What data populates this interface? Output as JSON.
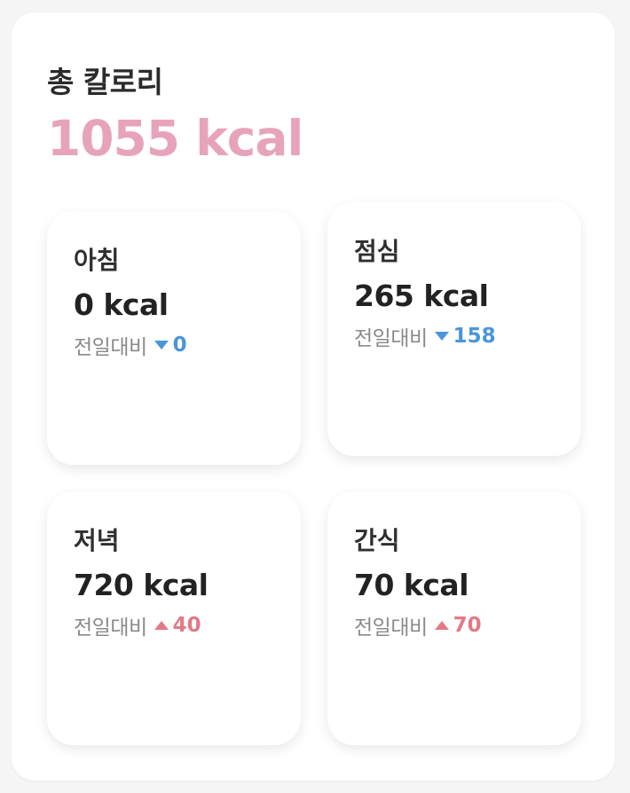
{
  "summary": {
    "title": "총 칼로리",
    "total": "1055 kcal",
    "accent_color": "#e8a3bc"
  },
  "meals": [
    {
      "name": "아침",
      "calories": "0 kcal",
      "compare_label": "전일대비",
      "direction": "down",
      "delta": "0"
    },
    {
      "name": "점심",
      "calories": "265 kcal",
      "compare_label": "전일대비",
      "direction": "down",
      "delta": "158"
    },
    {
      "name": "저녁",
      "calories": "720 kcal",
      "compare_label": "전일대비",
      "direction": "up",
      "delta": "40"
    },
    {
      "name": "간식",
      "calories": "70 kcal",
      "compare_label": "전일대비",
      "direction": "up",
      "delta": "70"
    }
  ],
  "colors": {
    "down": "#4a95dc",
    "up": "#e27a86"
  }
}
